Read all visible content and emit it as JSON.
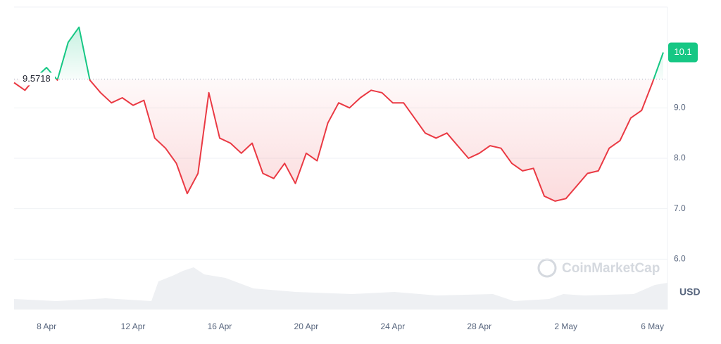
{
  "chart_data": {
    "type": "line",
    "categories": [
      null,
      null,
      null,
      "8 Apr",
      null,
      null,
      null,
      null,
      null,
      null,
      null,
      "12 Apr",
      null,
      null,
      null,
      null,
      null,
      null,
      null,
      "16 Apr",
      null,
      null,
      null,
      null,
      null,
      null,
      null,
      "20 Apr",
      null,
      null,
      null,
      null,
      null,
      null,
      null,
      "24 Apr",
      null,
      null,
      null,
      null,
      null,
      null,
      null,
      "28 Apr",
      null,
      null,
      null,
      null,
      null,
      null,
      null,
      "2 May",
      null,
      null,
      null,
      null,
      null,
      null,
      null,
      "6 May",
      null
    ],
    "values": [
      9.5,
      9.35,
      9.6,
      9.8,
      9.55,
      10.3,
      10.6,
      9.55,
      9.3,
      9.1,
      9.2,
      9.05,
      9.15,
      8.4,
      8.2,
      7.9,
      7.3,
      7.7,
      9.3,
      8.4,
      8.3,
      8.1,
      8.3,
      7.7,
      7.6,
      7.9,
      7.5,
      8.1,
      7.95,
      8.7,
      9.1,
      9.0,
      9.2,
      9.35,
      9.3,
      9.1,
      9.1,
      8.8,
      8.5,
      8.4,
      8.5,
      8.25,
      8.0,
      8.1,
      8.25,
      8.2,
      7.9,
      7.75,
      7.8,
      7.25,
      7.15,
      7.2,
      7.45,
      7.7,
      7.75,
      8.2,
      8.35,
      8.8,
      8.95,
      9.5,
      10.1
    ],
    "value_labels": {
      "59": null
    },
    "baseline": 9.5718,
    "baseline_label": "9.5718",
    "current_price_label": "10.1",
    "up_color": "#16c784",
    "down_color": "#ea3943",
    "ylim": [
      5,
      11
    ],
    "yticks": [
      {
        "value": 6,
        "label": "6.0"
      },
      {
        "value": 7,
        "label": "7.0"
      },
      {
        "value": 8,
        "label": "8.0"
      },
      {
        "value": 9,
        "label": "9.0"
      }
    ],
    "y_unit": "USD",
    "watermark": "CoinMarketCap",
    "grid": true
  }
}
